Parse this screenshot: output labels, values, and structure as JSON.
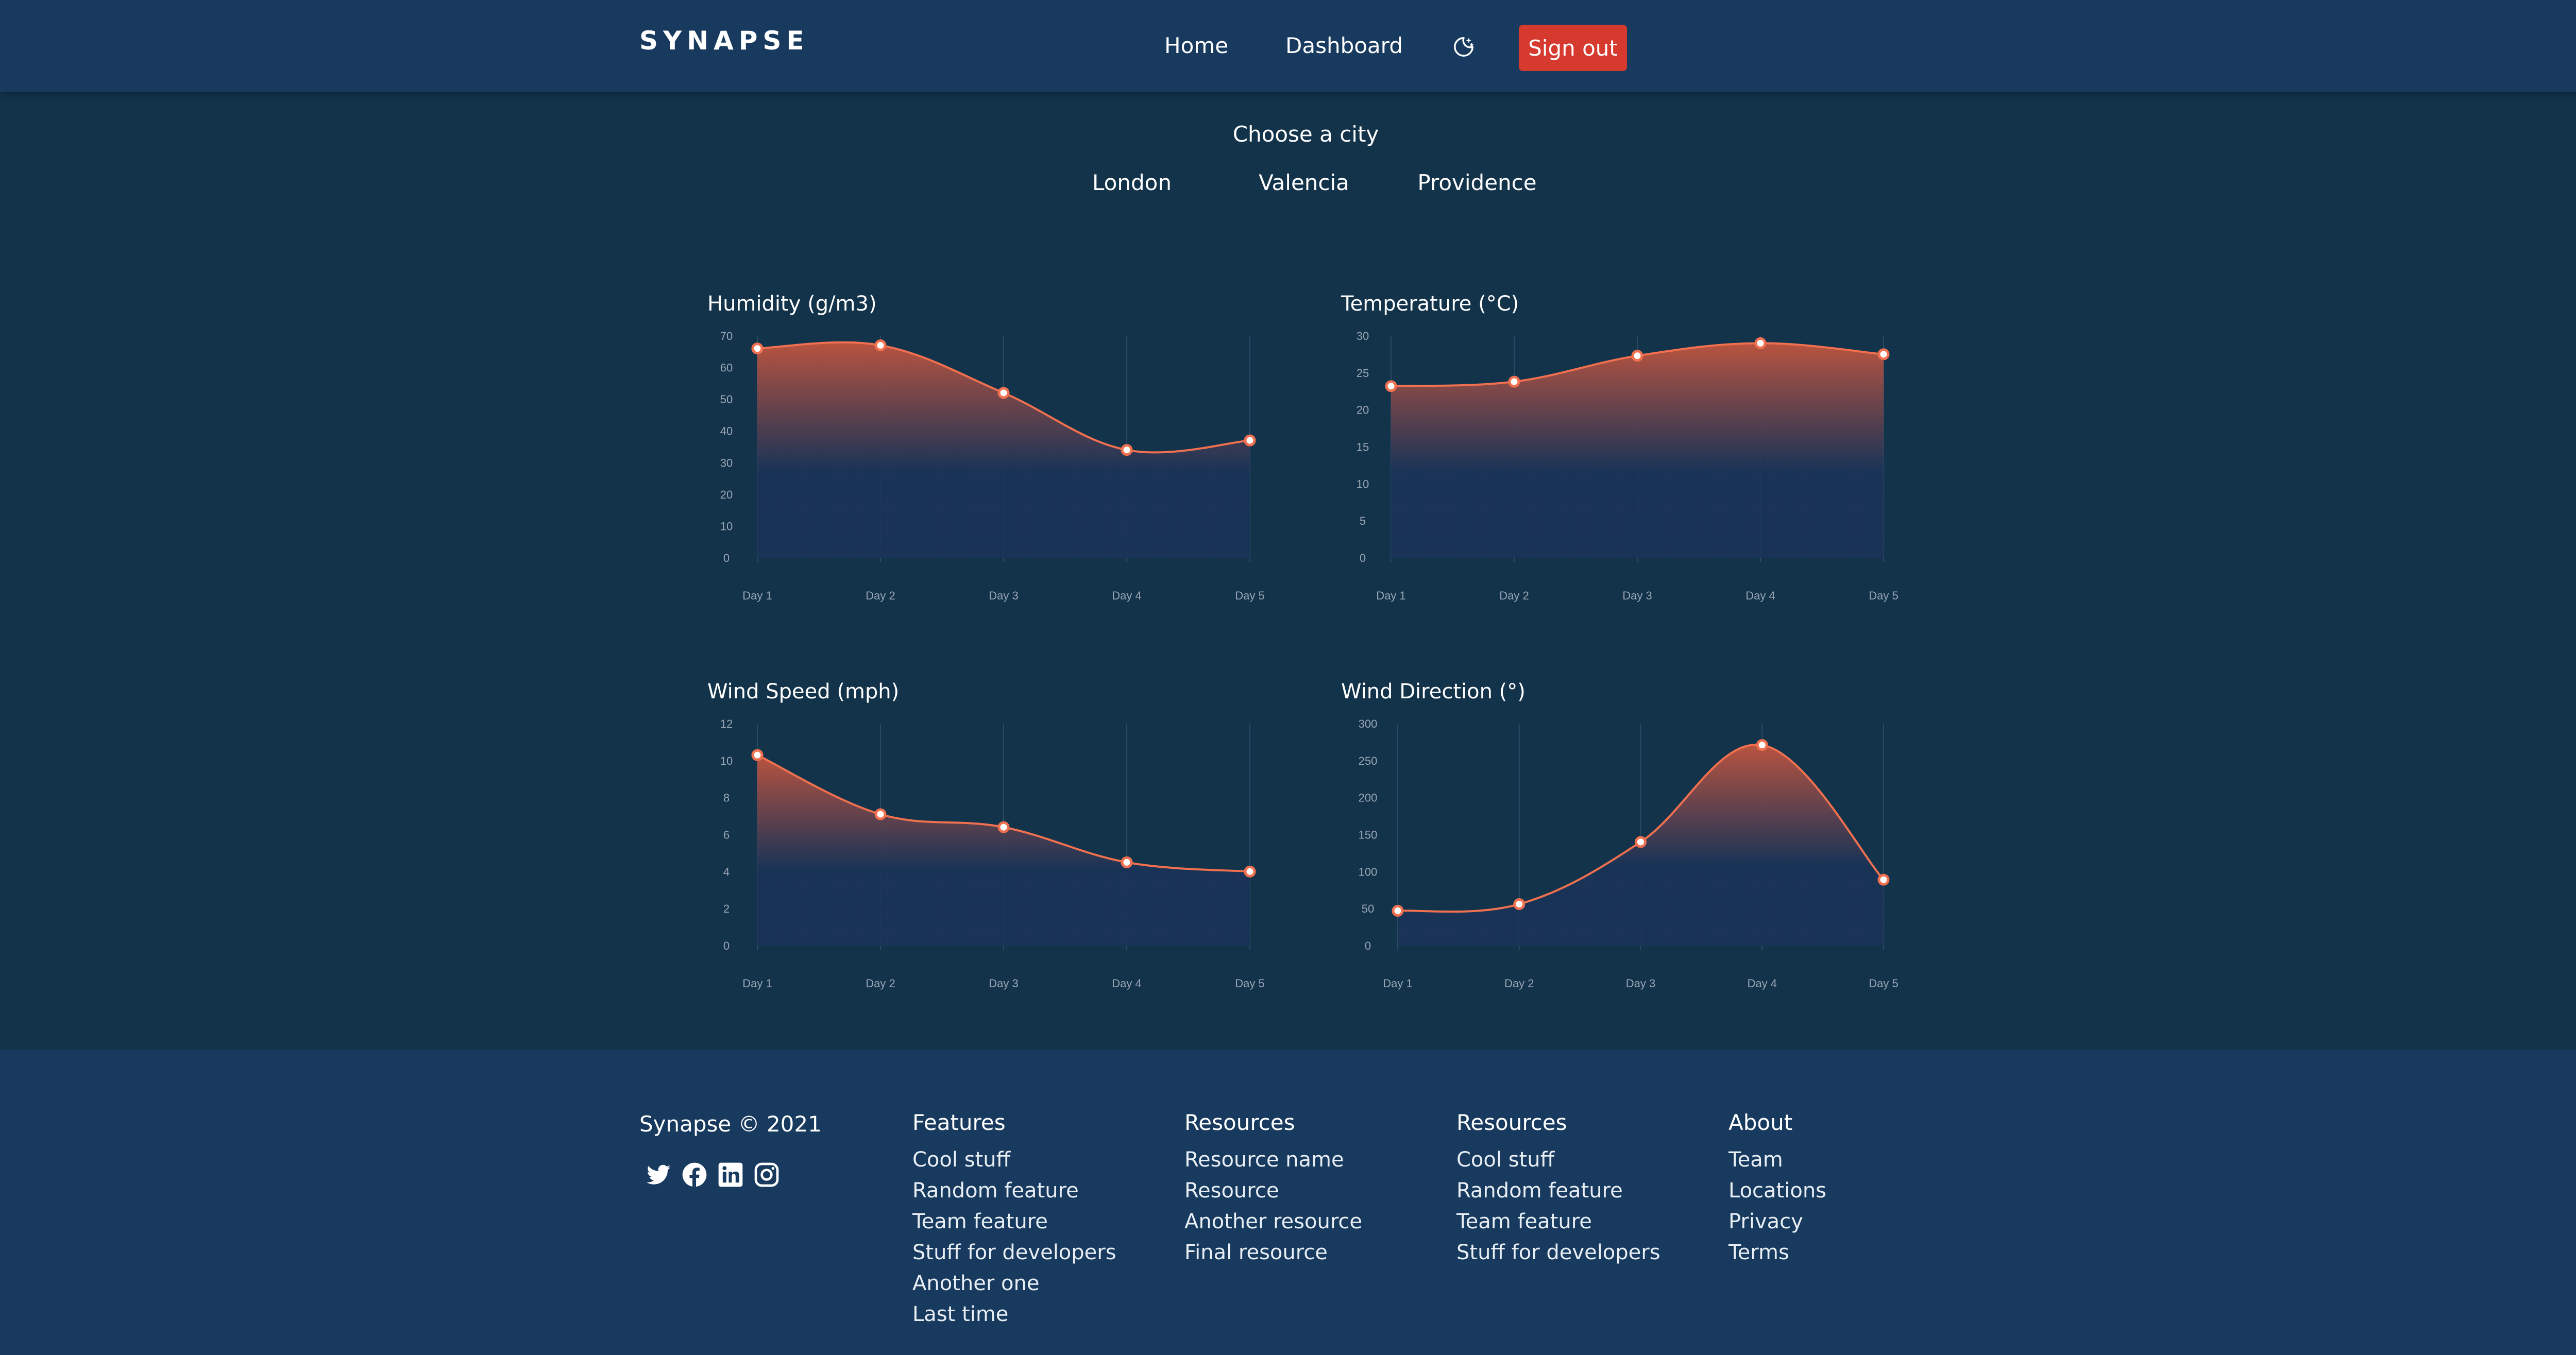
{
  "header": {
    "logo": "SYNAPSE",
    "nav": [
      "Home",
      "Dashboard"
    ],
    "theme_icon": "moon-icon",
    "signout_label": "Sign out",
    "signout_color": "#d63a2e"
  },
  "city": {
    "title": "Choose a city",
    "options": [
      "London",
      "Valencia",
      "Providence"
    ]
  },
  "charts": {
    "humidity_title": "Humidity (g/m3)",
    "temperature_title": "Temperature (°C)",
    "wind_speed_title": "Wind Speed (mph)",
    "wind_direction_title": "Wind Direction (°)"
  },
  "chart_data": [
    {
      "type": "area",
      "title": "Humidity (g/m3)",
      "categories": [
        "Day 1",
        "Day 2",
        "Day 3",
        "Day 4",
        "Day 5"
      ],
      "values": [
        66,
        67,
        52,
        34,
        37
      ],
      "ylim": [
        0,
        70
      ],
      "yticks": [
        0,
        10,
        20,
        30,
        40,
        50,
        60,
        70
      ]
    },
    {
      "type": "area",
      "title": "Temperature (°C)",
      "categories": [
        "Day 1",
        "Day 2",
        "Day 3",
        "Day 4",
        "Day 5"
      ],
      "values": [
        23.2,
        23.8,
        27.3,
        29.0,
        27.5
      ],
      "ylim": [
        0,
        30
      ],
      "yticks": [
        0,
        5,
        10,
        15,
        20,
        25,
        30
      ]
    },
    {
      "type": "area",
      "title": "Wind Speed (mph)",
      "categories": [
        "Day 1",
        "Day 2",
        "Day 3",
        "Day 4",
        "Day 5"
      ],
      "values": [
        10.3,
        7.1,
        6.4,
        4.5,
        4.0
      ],
      "ylim": [
        0,
        12
      ],
      "yticks": [
        0,
        2,
        4,
        6,
        8,
        10,
        12
      ]
    },
    {
      "type": "area",
      "title": "Wind Direction (°)",
      "categories": [
        "Day 1",
        "Day 2",
        "Day 3",
        "Day 4",
        "Day 5"
      ],
      "values": [
        47,
        56,
        140,
        271,
        89
      ],
      "ylim": [
        0,
        300
      ],
      "yticks": [
        0,
        50,
        100,
        150,
        200,
        250,
        300
      ]
    }
  ],
  "colors": {
    "line": "#f0704f",
    "area_top": "#c2553f",
    "area_bottom": "#1a3358",
    "header_bg": "#173a5e",
    "page_bg": "#13334b"
  },
  "footer": {
    "copyright": "Synapse © 2021",
    "social_icons": [
      "twitter-icon",
      "facebook-icon",
      "linkedin-icon",
      "instagram-icon"
    ],
    "columns": [
      {
        "heading": "Features",
        "items": [
          "Cool stuff",
          "Random feature",
          "Team feature",
          "Stuff for developers",
          "Another one",
          "Last time"
        ]
      },
      {
        "heading": "Resources",
        "items": [
          "Resource name",
          "Resource",
          "Another resource",
          "Final resource"
        ]
      },
      {
        "heading": "Resources",
        "items": [
          "Cool stuff",
          "Random feature",
          "Team feature",
          "Stuff for developers"
        ]
      },
      {
        "heading": "About",
        "items": [
          "Team",
          "Locations",
          "Privacy",
          "Terms"
        ]
      }
    ]
  }
}
